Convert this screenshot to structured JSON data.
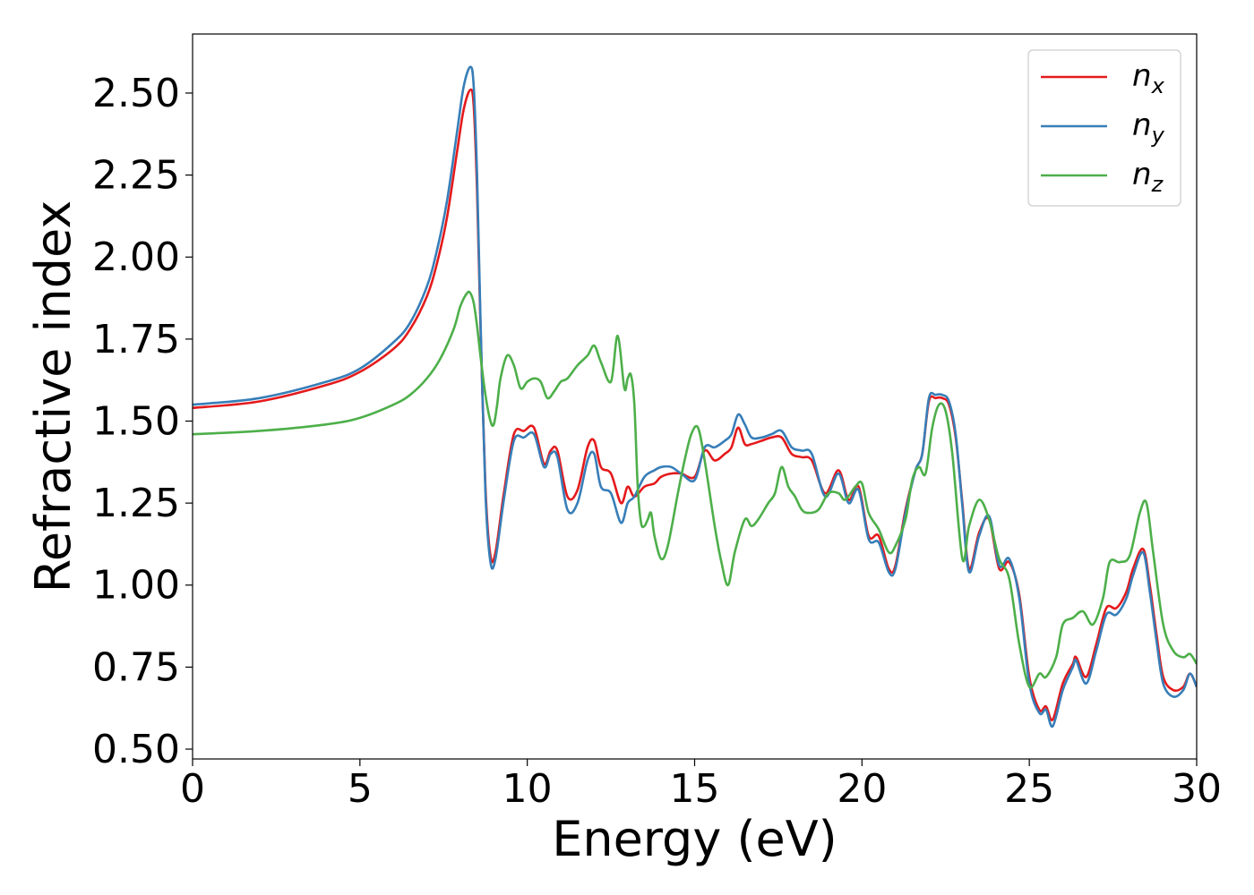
{
  "chart_data": {
    "type": "line",
    "xlabel": "Energy (eV)",
    "ylabel": "Refractive index",
    "xlim": [
      0,
      30
    ],
    "ylim": [
      0.47,
      2.68
    ],
    "xticks": [
      0,
      5,
      10,
      15,
      20,
      25,
      30
    ],
    "yticks": [
      0.5,
      0.75,
      1.0,
      1.25,
      1.5,
      1.75,
      2.0,
      2.25,
      2.5
    ],
    "xtick_labels": [
      "0",
      "5",
      "10",
      "15",
      "20",
      "25",
      "30"
    ],
    "ytick_labels": [
      "0.50",
      "0.75",
      "1.00",
      "1.25",
      "1.50",
      "1.75",
      "2.00",
      "2.25",
      "2.50"
    ],
    "grid": false,
    "legend_position": "top-right",
    "series": [
      {
        "name": "n_x",
        "label_base": "n",
        "label_sub": "x",
        "color": "#e41a1c",
        "x": [
          0,
          2,
          4,
          5,
          6,
          6.5,
          7,
          7.3,
          7.6,
          7.9,
          8.1,
          8.3,
          8.4,
          8.5,
          8.6,
          8.75,
          8.9,
          9.05,
          9.3,
          9.6,
          9.9,
          10.2,
          10.5,
          10.7,
          10.9,
          11.2,
          11.5,
          11.8,
          12.0,
          12.2,
          12.5,
          12.8,
          13.0,
          13.2,
          13.5,
          13.8,
          14.0,
          14.3,
          14.6,
          15.0,
          15.3,
          15.6,
          15.9,
          16.1,
          16.3,
          16.5,
          16.7,
          17.0,
          17.3,
          17.6,
          17.9,
          18.2,
          18.5,
          18.9,
          19.3,
          19.6,
          19.9,
          20.2,
          20.5,
          20.8,
          21.0,
          21.3,
          21.6,
          21.8,
          22.0,
          22.2,
          22.4,
          22.6,
          22.8,
          23.0,
          23.2,
          23.5,
          23.8,
          24.1,
          24.4,
          24.7,
          25.0,
          25.3,
          25.5,
          25.7,
          26.0,
          26.3,
          26.4,
          26.7,
          27.0,
          27.3,
          27.6,
          27.9,
          28.1,
          28.4,
          28.6,
          28.8,
          29.0,
          29.3,
          29.6,
          29.8,
          30.0
        ],
        "values": [
          1.54,
          1.56,
          1.61,
          1.65,
          1.72,
          1.78,
          1.88,
          1.98,
          2.12,
          2.32,
          2.45,
          2.51,
          2.46,
          2.2,
          1.8,
          1.3,
          1.09,
          1.1,
          1.28,
          1.46,
          1.47,
          1.48,
          1.37,
          1.41,
          1.41,
          1.27,
          1.29,
          1.42,
          1.44,
          1.36,
          1.34,
          1.25,
          1.3,
          1.27,
          1.3,
          1.31,
          1.33,
          1.34,
          1.34,
          1.33,
          1.41,
          1.38,
          1.4,
          1.42,
          1.48,
          1.43,
          1.43,
          1.44,
          1.45,
          1.45,
          1.4,
          1.39,
          1.38,
          1.28,
          1.35,
          1.26,
          1.3,
          1.15,
          1.15,
          1.05,
          1.06,
          1.23,
          1.35,
          1.4,
          1.56,
          1.57,
          1.57,
          1.55,
          1.45,
          1.25,
          1.05,
          1.16,
          1.2,
          1.05,
          1.07,
          0.97,
          0.72,
          0.62,
          0.63,
          0.59,
          0.7,
          0.76,
          0.78,
          0.72,
          0.82,
          0.93,
          0.93,
          0.98,
          1.05,
          1.11,
          1.0,
          0.85,
          0.72,
          0.68,
          0.69,
          0.73,
          0.69
        ]
      },
      {
        "name": "n_y",
        "label_base": "n",
        "label_sub": "y",
        "color": "#377eb8",
        "x": [
          0,
          2,
          4,
          5,
          6,
          6.5,
          7,
          7.3,
          7.6,
          7.9,
          8.1,
          8.3,
          8.4,
          8.5,
          8.6,
          8.75,
          8.9,
          9.05,
          9.3,
          9.6,
          9.9,
          10.2,
          10.5,
          10.7,
          10.9,
          11.2,
          11.5,
          11.8,
          12.0,
          12.2,
          12.5,
          12.8,
          13.0,
          13.2,
          13.5,
          13.8,
          14.0,
          14.3,
          14.6,
          15.0,
          15.3,
          15.6,
          15.9,
          16.1,
          16.3,
          16.5,
          16.7,
          17.0,
          17.3,
          17.6,
          17.9,
          18.2,
          18.5,
          18.9,
          19.3,
          19.6,
          19.9,
          20.2,
          20.5,
          20.8,
          21.0,
          21.3,
          21.6,
          21.8,
          22.0,
          22.2,
          22.4,
          22.6,
          22.8,
          23.0,
          23.2,
          23.5,
          23.8,
          24.1,
          24.4,
          24.7,
          25.0,
          25.3,
          25.5,
          25.7,
          26.0,
          26.3,
          26.4,
          26.7,
          27.0,
          27.3,
          27.6,
          27.9,
          28.1,
          28.4,
          28.6,
          28.8,
          29.0,
          29.3,
          29.6,
          29.8,
          30.0
        ],
        "values": [
          1.55,
          1.57,
          1.62,
          1.66,
          1.74,
          1.8,
          1.91,
          2.02,
          2.17,
          2.38,
          2.52,
          2.58,
          2.52,
          2.25,
          1.82,
          1.28,
          1.07,
          1.08,
          1.26,
          1.44,
          1.45,
          1.46,
          1.36,
          1.4,
          1.39,
          1.23,
          1.25,
          1.38,
          1.4,
          1.3,
          1.28,
          1.19,
          1.25,
          1.27,
          1.33,
          1.35,
          1.36,
          1.36,
          1.34,
          1.32,
          1.42,
          1.42,
          1.44,
          1.46,
          1.52,
          1.49,
          1.45,
          1.45,
          1.46,
          1.47,
          1.42,
          1.41,
          1.4,
          1.27,
          1.34,
          1.25,
          1.29,
          1.14,
          1.13,
          1.04,
          1.05,
          1.22,
          1.35,
          1.4,
          1.57,
          1.58,
          1.58,
          1.56,
          1.46,
          1.24,
          1.04,
          1.15,
          1.21,
          1.06,
          1.08,
          0.96,
          0.7,
          0.61,
          0.62,
          0.57,
          0.68,
          0.75,
          0.77,
          0.7,
          0.8,
          0.91,
          0.91,
          0.96,
          1.03,
          1.1,
          0.98,
          0.83,
          0.7,
          0.66,
          0.68,
          0.73,
          0.69
        ]
      },
      {
        "name": "n_z",
        "label_base": "n",
        "label_sub": "z",
        "color": "#4daf4a",
        "x": [
          0,
          2,
          4,
          5,
          6,
          6.5,
          7,
          7.4,
          7.8,
          8.0,
          8.2,
          8.3,
          8.4,
          8.5,
          8.6,
          8.75,
          8.9,
          9.0,
          9.1,
          9.2,
          9.4,
          9.6,
          9.8,
          10.0,
          10.2,
          10.4,
          10.6,
          10.8,
          11.0,
          11.2,
          11.5,
          11.8,
          12.0,
          12.2,
          12.5,
          12.7,
          12.9,
          13.0,
          13.1,
          13.2,
          13.3,
          13.4,
          13.5,
          13.6,
          13.7,
          13.8,
          14.0,
          14.2,
          14.5,
          14.7,
          14.9,
          15.1,
          15.3,
          15.6,
          15.8,
          16.0,
          16.2,
          16.5,
          16.7,
          16.9,
          17.2,
          17.4,
          17.6,
          17.8,
          18.0,
          18.2,
          18.4,
          18.7,
          19.0,
          19.3,
          19.5,
          19.8,
          20.0,
          20.2,
          20.5,
          20.8,
          21.0,
          21.3,
          21.5,
          21.7,
          21.9,
          22.1,
          22.3,
          22.5,
          22.7,
          23.0,
          23.2,
          23.5,
          23.8,
          24.1,
          24.4,
          24.7,
          25.0,
          25.3,
          25.5,
          25.8,
          26.0,
          26.3,
          26.6,
          26.9,
          27.2,
          27.4,
          27.7,
          28.0,
          28.3,
          28.5,
          28.7,
          29.0,
          29.3,
          29.6,
          29.8,
          30.0
        ],
        "values": [
          1.46,
          1.47,
          1.49,
          1.51,
          1.55,
          1.58,
          1.63,
          1.69,
          1.78,
          1.85,
          1.89,
          1.89,
          1.86,
          1.79,
          1.7,
          1.58,
          1.5,
          1.49,
          1.55,
          1.63,
          1.7,
          1.67,
          1.6,
          1.62,
          1.63,
          1.62,
          1.57,
          1.59,
          1.62,
          1.63,
          1.67,
          1.7,
          1.73,
          1.68,
          1.62,
          1.76,
          1.6,
          1.63,
          1.64,
          1.55,
          1.3,
          1.19,
          1.18,
          1.2,
          1.22,
          1.15,
          1.08,
          1.12,
          1.28,
          1.38,
          1.46,
          1.48,
          1.38,
          1.18,
          1.07,
          1.0,
          1.1,
          1.2,
          1.18,
          1.2,
          1.25,
          1.28,
          1.36,
          1.3,
          1.27,
          1.23,
          1.22,
          1.23,
          1.28,
          1.28,
          1.26,
          1.3,
          1.31,
          1.22,
          1.17,
          1.1,
          1.12,
          1.2,
          1.32,
          1.36,
          1.34,
          1.48,
          1.55,
          1.53,
          1.4,
          1.08,
          1.18,
          1.26,
          1.2,
          1.08,
          1.02,
          0.82,
          0.69,
          0.73,
          0.72,
          0.78,
          0.88,
          0.9,
          0.92,
          0.88,
          0.96,
          1.07,
          1.07,
          1.09,
          1.22,
          1.25,
          1.1,
          0.88,
          0.8,
          0.78,
          0.79,
          0.76
        ]
      }
    ]
  }
}
